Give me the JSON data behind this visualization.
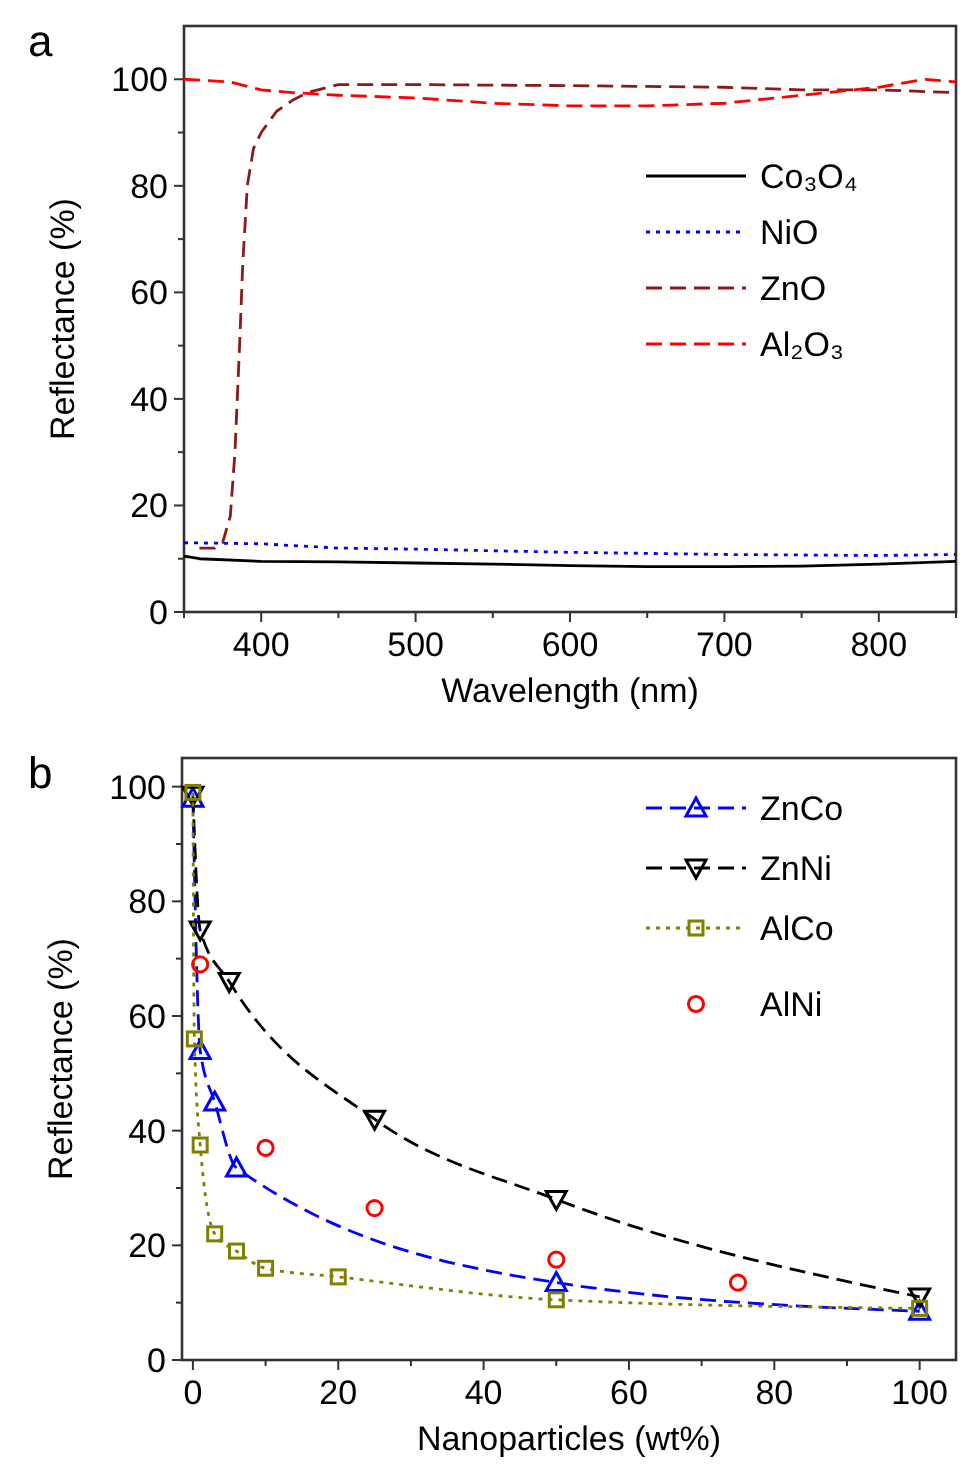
{
  "chart_data": [
    {
      "type": "line",
      "title": "a",
      "xlabel": "Wavelength (nm)",
      "ylabel": "Reflectance (%)",
      "xlim": [
        350,
        850
      ],
      "ylim": [
        0,
        110
      ],
      "xticks": [
        {
          "value": 350,
          "label": null
        },
        400,
        {
          "value": 450,
          "label": null
        },
        500,
        {
          "value": 550,
          "label": null
        },
        600,
        {
          "value": 650,
          "label": null
        },
        700,
        {
          "value": 750,
          "label": null
        },
        800,
        {
          "value": 850,
          "label": null
        }
      ],
      "yticks": [
        0,
        {
          "value": 10,
          "label": null
        },
        20,
        {
          "value": 30,
          "label": null
        },
        40,
        {
          "value": 50,
          "label": null
        },
        60,
        {
          "value": 70,
          "label": null
        },
        80,
        {
          "value": 90,
          "label": null
        },
        100
      ],
      "legend": "top right",
      "grid": false,
      "series": [
        {
          "name": "Co₃O₄",
          "color": "#000000",
          "line_style": "solid",
          "x": [
            350,
            360,
            400,
            450,
            500,
            550,
            600,
            650,
            700,
            750,
            800,
            850
          ],
          "values": [
            10.5,
            10,
            9.5,
            9.4,
            9.2,
            9,
            8.7,
            8.5,
            8.5,
            8.6,
            9,
            9.5
          ]
        },
        {
          "name": "NiO",
          "color": "#0000ff",
          "line_style": "dotted",
          "x": [
            350,
            400,
            450,
            500,
            550,
            600,
            650,
            700,
            750,
            800,
            850
          ],
          "values": [
            13,
            12.8,
            12,
            11.8,
            11.5,
            11.2,
            11,
            10.8,
            10.7,
            10.6,
            10.8
          ]
        },
        {
          "name": "ZnO",
          "color": "#8b1a1a",
          "line_style": "dashed",
          "x": [
            360,
            370,
            375,
            380,
            383,
            386,
            388,
            391,
            395,
            400,
            410,
            420,
            430,
            450,
            500,
            600,
            700,
            750,
            800,
            850
          ],
          "values": [
            12,
            12,
            13,
            18,
            30,
            50,
            65,
            80,
            87,
            90,
            94,
            96,
            97.5,
            99,
            99,
            98.8,
            98.5,
            98,
            98,
            97.5
          ]
        },
        {
          "name": "Al₂O₃",
          "color": "#ff0000",
          "line_style": "dashed",
          "x": [
            350,
            380,
            400,
            420,
            450,
            500,
            550,
            600,
            650,
            700,
            750,
            800,
            830,
            850
          ],
          "values": [
            100,
            99.5,
            98,
            97.5,
            97,
            96.5,
            95.5,
            95,
            95,
            95.5,
            97,
            98.5,
            100,
            99.5
          ]
        }
      ]
    },
    {
      "type": "line",
      "title": "b",
      "xlabel": "Nanoparticles (wt%)",
      "ylabel": "Reflectance (%)",
      "xlim": [
        -1.5,
        105
      ],
      "ylim": [
        0,
        105
      ],
      "xticks": [
        0,
        {
          "value": 10,
          "label": null
        },
        20,
        {
          "value": 30,
          "label": null
        },
        40,
        {
          "value": 50,
          "label": null
        },
        60,
        {
          "value": 70,
          "label": null
        },
        80,
        {
          "value": 90,
          "label": null
        },
        100
      ],
      "yticks": [
        0,
        {
          "value": 10,
          "label": null
        },
        20,
        {
          "value": 30,
          "label": null
        },
        40,
        {
          "value": 50,
          "label": null
        },
        60,
        {
          "value": 70,
          "label": null
        },
        80,
        {
          "value": 90,
          "label": null
        },
        100
      ],
      "legend": "top right",
      "grid": false,
      "series": [
        {
          "name": "ZnCo",
          "color": "#0000ff",
          "line_style": "dashed",
          "marker": "triangle",
          "x": [
            0,
            1,
            3,
            6,
            50,
            100
          ],
          "values": [
            98,
            54,
            45,
            33.5,
            13.5,
            8.5
          ]
        },
        {
          "name": "ZnNi",
          "color": "#000000",
          "line_style": "dashed",
          "marker": "triangle-down",
          "x": [
            0,
            1,
            5,
            25,
            50,
            100
          ],
          "values": [
            98.5,
            75,
            66,
            42,
            28,
            11
          ]
        },
        {
          "name": "AlCo",
          "color": "#808000",
          "line_style": "dotted",
          "marker": "square",
          "x": [
            0,
            0.2,
            1,
            3,
            6,
            10,
            20,
            50,
            100
          ],
          "values": [
            99,
            56,
            37.5,
            22,
            19,
            16,
            14.5,
            10.5,
            9
          ]
        },
        {
          "name": "AlNi",
          "type": "scatter",
          "color": "#ff0000",
          "marker": "circle",
          "x": [
            1,
            10,
            25,
            50,
            75
          ],
          "values": [
            69,
            37,
            26.5,
            17.5,
            13.5
          ]
        }
      ]
    }
  ]
}
